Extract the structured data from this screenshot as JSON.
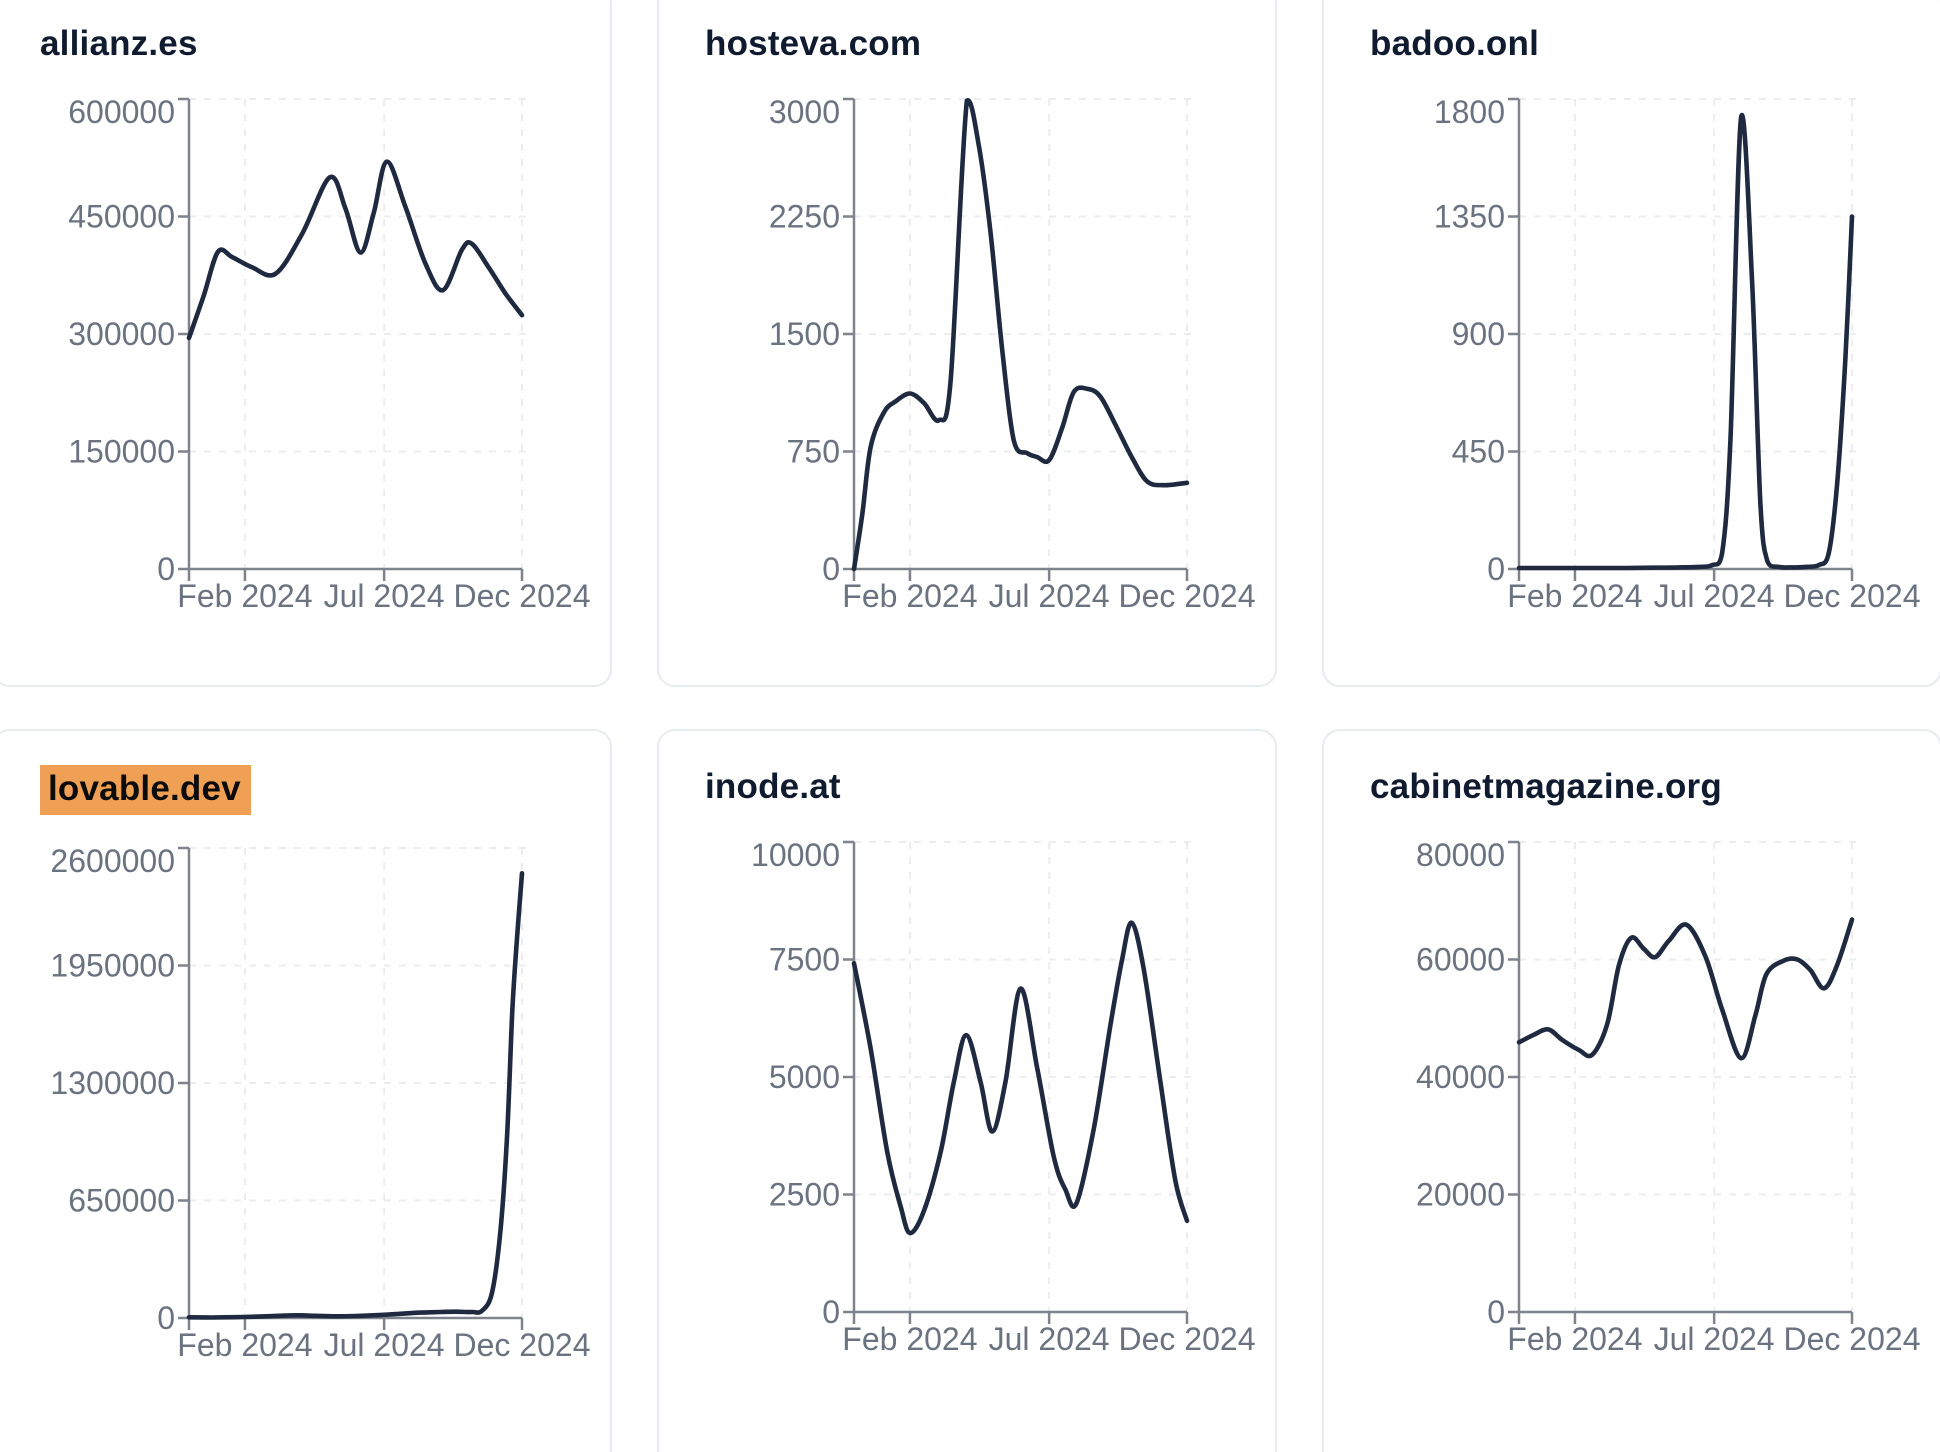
{
  "colors": {
    "page_bg": "#ffffff",
    "card_bg": "#ffffff",
    "card_border": "#e8ebf1",
    "title": "#111b30",
    "label": "#6b7280",
    "axis": "#7f838b",
    "grid": "#ebedf0",
    "line": "#1f2a40",
    "highlight_bg": "#f0a055",
    "highlight_text": "#0b0b0b"
  },
  "x_axis": {
    "ticks": [
      {
        "label": "Feb 2024",
        "pos": 0.168
      },
      {
        "label": "Jul 2024",
        "pos": 0.586
      },
      {
        "label": "Dec 2024",
        "pos": 1.0
      }
    ]
  },
  "chart_data": [
    {
      "type": "line",
      "title": "allianz.es",
      "highlighted": false,
      "ylim": [
        0,
        600000
      ],
      "y_ticks": [
        0,
        150000,
        300000,
        450000,
        600000
      ],
      "x_tick_labels": [
        "Feb 2024",
        "Jul 2024",
        "Dec 2024"
      ],
      "grid": "dashed",
      "points": [
        [
          0,
          295000
        ],
        [
          0.045,
          350000
        ],
        [
          0.087,
          405000
        ],
        [
          0.13,
          398000
        ],
        [
          0.19,
          385000
        ],
        [
          0.26,
          377000
        ],
        [
          0.34,
          428000
        ],
        [
          0.423,
          500000
        ],
        [
          0.47,
          460000
        ],
        [
          0.515,
          404000
        ],
        [
          0.555,
          455000
        ],
        [
          0.594,
          520000
        ],
        [
          0.65,
          462000
        ],
        [
          0.71,
          390000
        ],
        [
          0.763,
          356000
        ],
        [
          0.82,
          408000
        ],
        [
          0.85,
          415000
        ],
        [
          0.9,
          385000
        ],
        [
          0.95,
          352000
        ],
        [
          1.0,
          324000
        ]
      ]
    },
    {
      "type": "line",
      "title": "hosteva.com",
      "highlighted": false,
      "ylim": [
        0,
        3000
      ],
      "y_ticks": [
        0,
        750,
        1500,
        2250,
        3000
      ],
      "x_tick_labels": [
        "Feb 2024",
        "Jul 2024",
        "Dec 2024"
      ],
      "grid": "dashed",
      "points": [
        [
          0,
          0
        ],
        [
          0.025,
          350
        ],
        [
          0.05,
          780
        ],
        [
          0.09,
          1000
        ],
        [
          0.125,
          1070
        ],
        [
          0.168,
          1120
        ],
        [
          0.21,
          1060
        ],
        [
          0.255,
          950
        ],
        [
          0.29,
          1200
        ],
        [
          0.339,
          2990
        ],
        [
          0.375,
          2700
        ],
        [
          0.41,
          2150
        ],
        [
          0.445,
          1400
        ],
        [
          0.48,
          820
        ],
        [
          0.52,
          740
        ],
        [
          0.55,
          715
        ],
        [
          0.586,
          695
        ],
        [
          0.625,
          900
        ],
        [
          0.66,
          1130
        ],
        [
          0.7,
          1150
        ],
        [
          0.74,
          1100
        ],
        [
          0.79,
          900
        ],
        [
          0.835,
          710
        ],
        [
          0.88,
          560
        ],
        [
          0.93,
          535
        ],
        [
          1.0,
          550
        ]
      ]
    },
    {
      "type": "line",
      "title": "badoo.onl",
      "highlighted": false,
      "ylim": [
        0,
        1800
      ],
      "y_ticks": [
        0,
        450,
        900,
        1350,
        1800
      ],
      "x_tick_labels": [
        "Feb 2024",
        "Jul 2024",
        "Dec 2024"
      ],
      "grid": "dashed",
      "points": [
        [
          0,
          4
        ],
        [
          0.08,
          4
        ],
        [
          0.16,
          4
        ],
        [
          0.24,
          4
        ],
        [
          0.32,
          4
        ],
        [
          0.4,
          5
        ],
        [
          0.48,
          6
        ],
        [
          0.54,
          8
        ],
        [
          0.58,
          15
        ],
        [
          0.61,
          60
        ],
        [
          0.635,
          500
        ],
        [
          0.667,
          1730
        ],
        [
          0.7,
          1100
        ],
        [
          0.725,
          250
        ],
        [
          0.746,
          30
        ],
        [
          0.78,
          8
        ],
        [
          0.82,
          6
        ],
        [
          0.86,
          8
        ],
        [
          0.9,
          15
        ],
        [
          0.93,
          60
        ],
        [
          0.955,
          320
        ],
        [
          0.98,
          800
        ],
        [
          1.0,
          1350
        ]
      ]
    },
    {
      "type": "line",
      "title": "lovable.dev",
      "highlighted": true,
      "ylim": [
        0,
        2600000
      ],
      "y_ticks": [
        0,
        650000,
        1300000,
        1950000,
        2600000
      ],
      "x_tick_labels": [
        "Feb 2024",
        "Jul 2024",
        "Dec 2024"
      ],
      "grid": "dashed",
      "points": [
        [
          0,
          4000
        ],
        [
          0.07,
          3000
        ],
        [
          0.14,
          4500
        ],
        [
          0.21,
          8000
        ],
        [
          0.29,
          13000
        ],
        [
          0.33,
          15000
        ],
        [
          0.38,
          12000
        ],
        [
          0.44,
          9500
        ],
        [
          0.5,
          11000
        ],
        [
          0.57,
          16000
        ],
        [
          0.64,
          24000
        ],
        [
          0.7,
          30000
        ],
        [
          0.755,
          33000
        ],
        [
          0.8,
          35000
        ],
        [
          0.851,
          33000
        ],
        [
          0.88,
          40000
        ],
        [
          0.91,
          140000
        ],
        [
          0.935,
          480000
        ],
        [
          0.955,
          1000000
        ],
        [
          0.971,
          1700000
        ],
        [
          0.985,
          2100000
        ],
        [
          1.0,
          2460000
        ]
      ]
    },
    {
      "type": "line",
      "title": "inode.at",
      "highlighted": false,
      "ylim": [
        0,
        10000
      ],
      "y_ticks": [
        0,
        2500,
        5000,
        7500,
        10000
      ],
      "x_tick_labels": [
        "Feb 2024",
        "Jul 2024",
        "Dec 2024"
      ],
      "grid": "dashed",
      "points": [
        [
          0,
          7420
        ],
        [
          0.05,
          5600
        ],
        [
          0.1,
          3400
        ],
        [
          0.14,
          2250
        ],
        [
          0.168,
          1680
        ],
        [
          0.21,
          2150
        ],
        [
          0.26,
          3400
        ],
        [
          0.3,
          4900
        ],
        [
          0.337,
          5890
        ],
        [
          0.38,
          4900
        ],
        [
          0.415,
          3840
        ],
        [
          0.455,
          4900
        ],
        [
          0.5,
          6880
        ],
        [
          0.55,
          5200
        ],
        [
          0.6,
          3300
        ],
        [
          0.635,
          2600
        ],
        [
          0.668,
          2310
        ],
        [
          0.72,
          3900
        ],
        [
          0.77,
          6100
        ],
        [
          0.805,
          7500
        ],
        [
          0.834,
          8280
        ],
        [
          0.87,
          7300
        ],
        [
          0.92,
          4900
        ],
        [
          0.965,
          2800
        ],
        [
          1.0,
          1940
        ]
      ]
    },
    {
      "type": "line",
      "title": "cabinetmagazine.org",
      "highlighted": false,
      "ylim": [
        0,
        80000
      ],
      "y_ticks": [
        0,
        20000,
        40000,
        60000,
        80000
      ],
      "x_tick_labels": [
        "Feb 2024",
        "Jul 2024",
        "Dec 2024"
      ],
      "grid": "dashed",
      "points": [
        [
          0,
          45900
        ],
        [
          0.045,
          47200
        ],
        [
          0.088,
          48100
        ],
        [
          0.13,
          46300
        ],
        [
          0.18,
          44600
        ],
        [
          0.22,
          43800
        ],
        [
          0.265,
          49000
        ],
        [
          0.3,
          59000
        ],
        [
          0.337,
          63700
        ],
        [
          0.375,
          61800
        ],
        [
          0.409,
          60400
        ],
        [
          0.45,
          63200
        ],
        [
          0.503,
          65900
        ],
        [
          0.56,
          60500
        ],
        [
          0.61,
          51500
        ],
        [
          0.667,
          43200
        ],
        [
          0.71,
          50500
        ],
        [
          0.743,
          57500
        ],
        [
          0.795,
          59800
        ],
        [
          0.836,
          60000
        ],
        [
          0.875,
          58200
        ],
        [
          0.916,
          55100
        ],
        [
          0.955,
          59000
        ],
        [
          1.0,
          66800
        ]
      ]
    }
  ]
}
